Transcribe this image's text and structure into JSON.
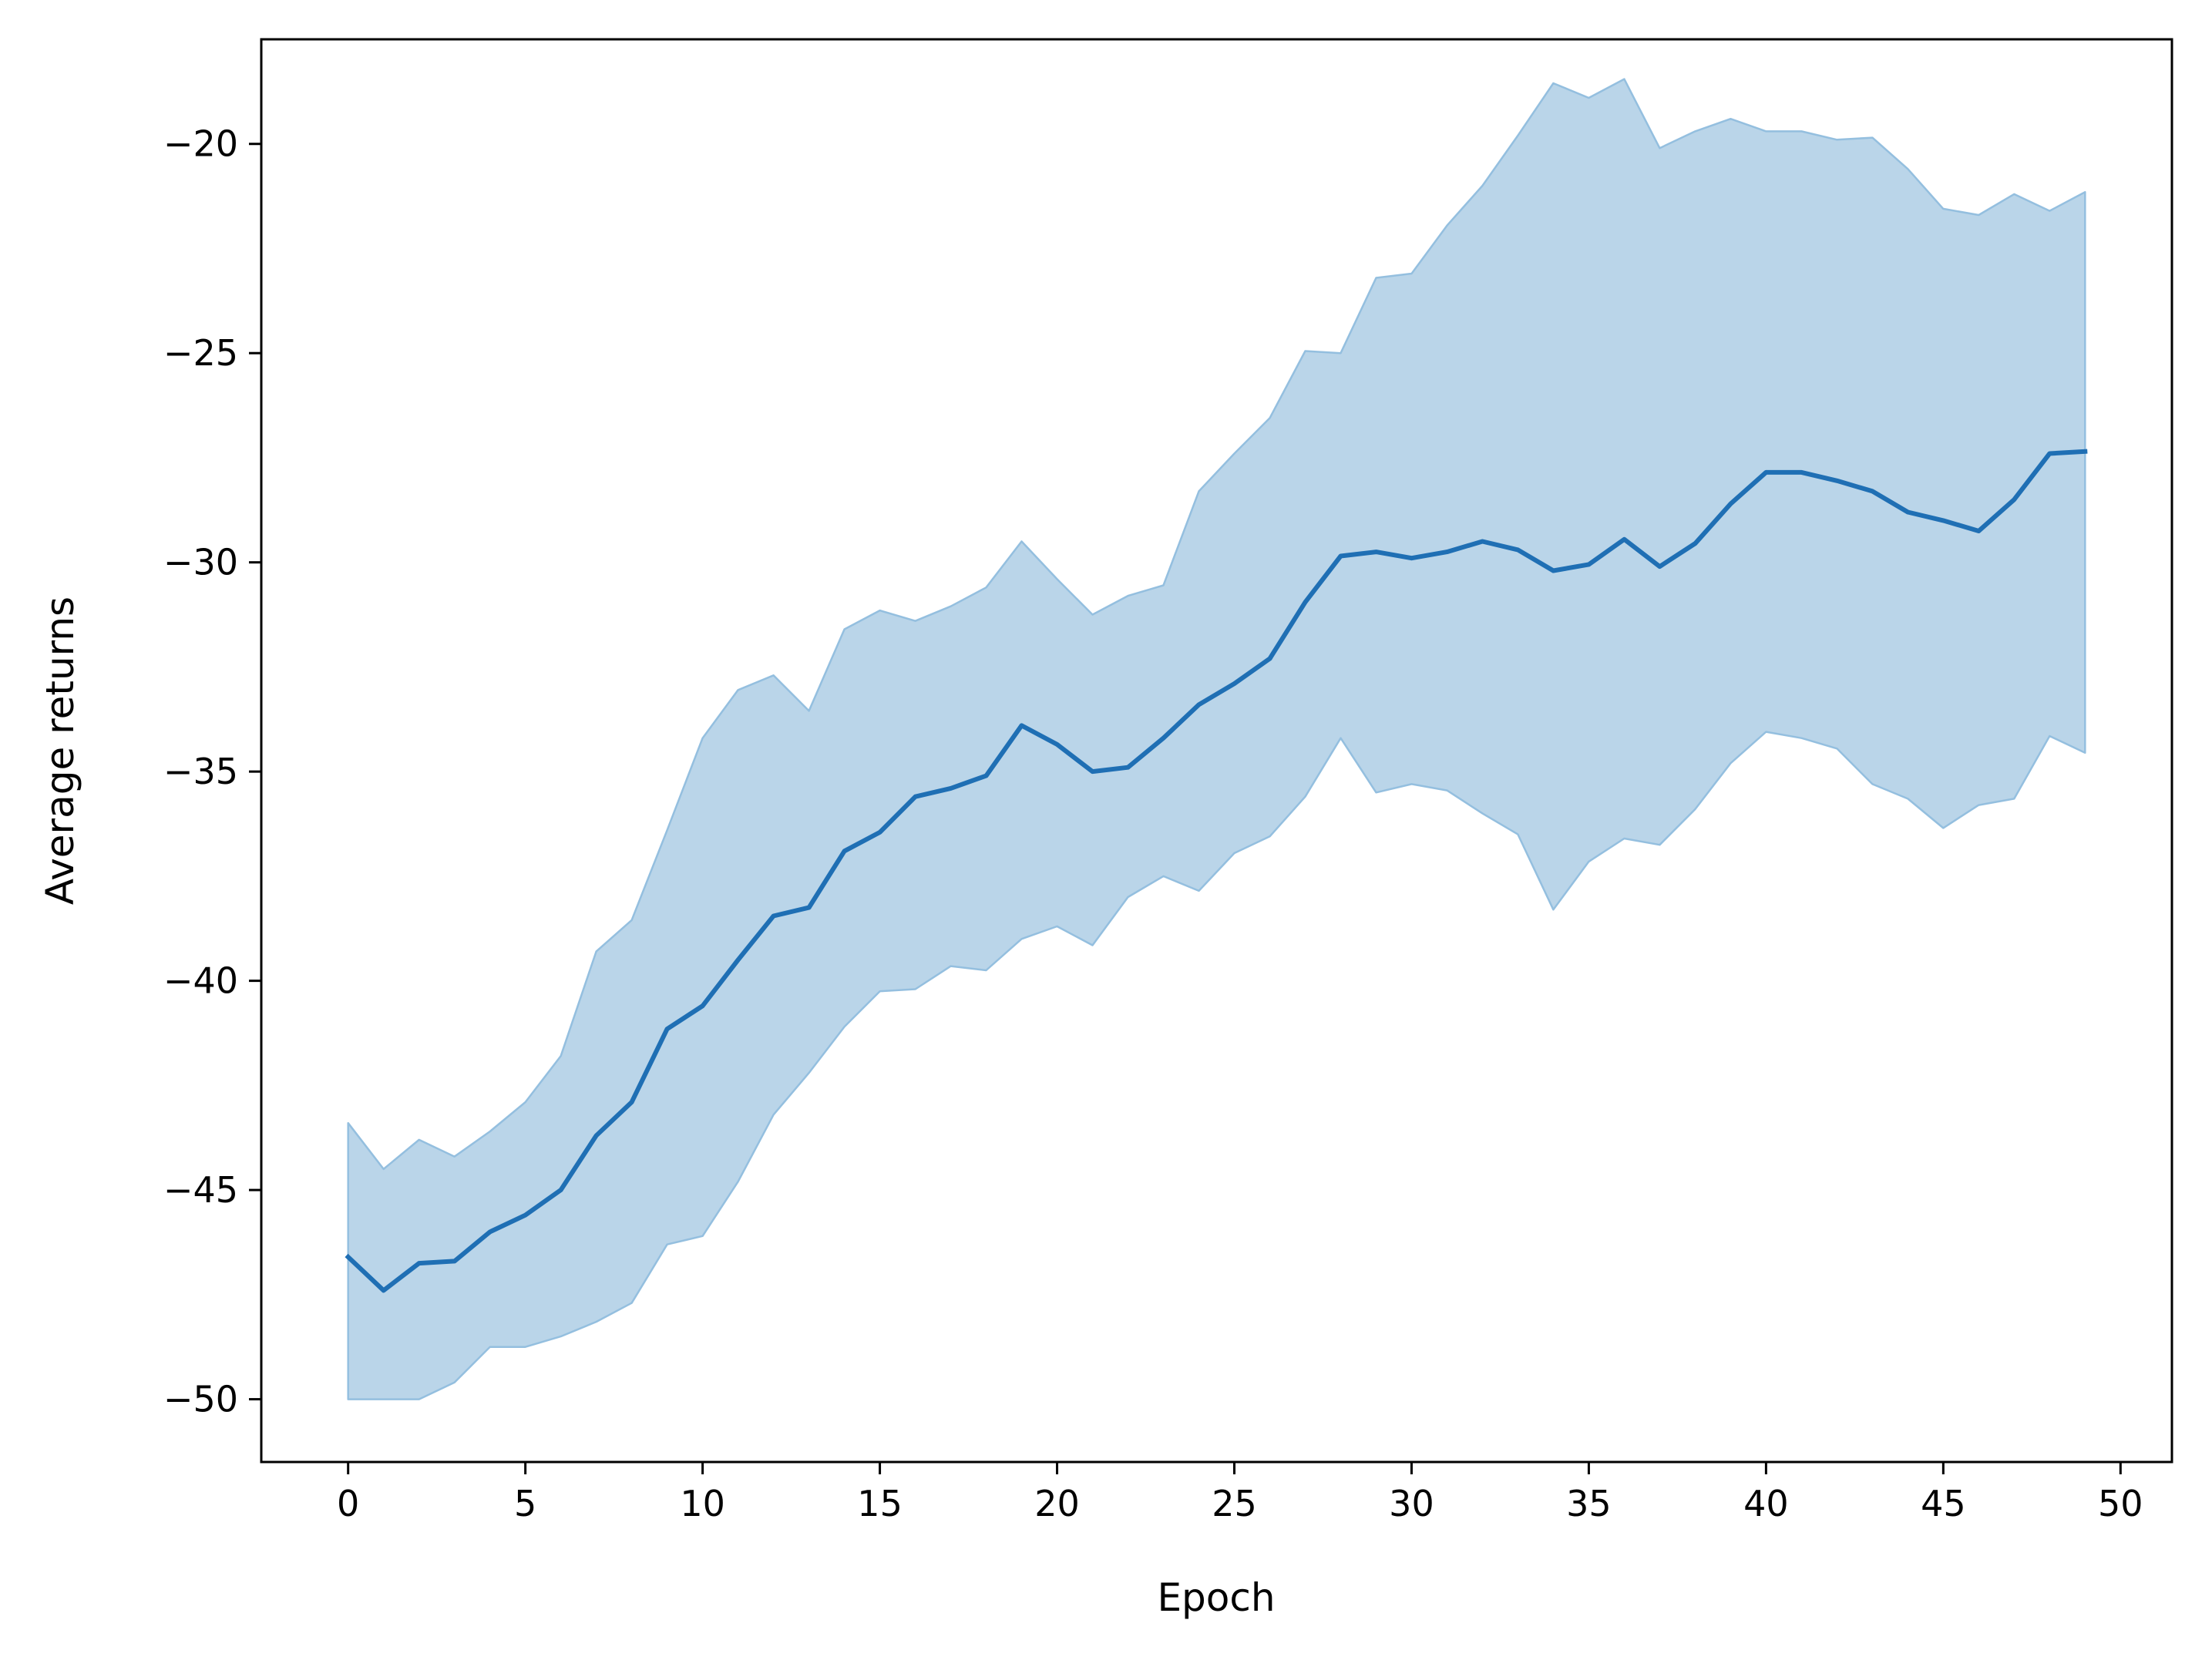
{
  "chart_data": {
    "type": "line",
    "title": "",
    "xlabel": "Epoch",
    "ylabel": "Average returns",
    "xlim": [
      -2.45,
      51.45
    ],
    "ylim": [
      -51.5,
      -17.5
    ],
    "xticks": [
      0,
      5,
      10,
      15,
      20,
      25,
      30,
      35,
      40,
      45,
      50
    ],
    "xtick_labels": [
      "0",
      "5",
      "10",
      "15",
      "20",
      "25",
      "30",
      "35",
      "40",
      "45",
      "50"
    ],
    "yticks": [
      -50,
      -45,
      -40,
      -35,
      -30,
      -25,
      -20
    ],
    "ytick_labels": [
      "−50",
      "−45",
      "−40",
      "−35",
      "−30",
      "−25",
      "−20"
    ],
    "grid": false,
    "legend": "none",
    "colors": {
      "line": "#1f6fb4",
      "band_fill": "#bad5e9",
      "band_edge": "#94bfdf",
      "axes": "#000000"
    },
    "x": [
      0,
      1,
      2,
      3,
      4,
      5,
      6,
      7,
      8,
      9,
      10,
      11,
      12,
      13,
      14,
      15,
      16,
      17,
      18,
      19,
      20,
      21,
      22,
      23,
      24,
      25,
      26,
      27,
      28,
      29,
      30,
      31,
      32,
      33,
      34,
      35,
      36,
      37,
      38,
      39,
      40,
      41,
      42,
      43,
      44,
      45,
      46,
      47,
      48,
      49
    ],
    "series": [
      {
        "values": [
          -46.6,
          -47.4,
          -46.75,
          -46.7,
          -46.0,
          -45.6,
          -45.0,
          -43.7,
          -42.9,
          -41.15,
          -40.6,
          -39.5,
          -38.45,
          -38.25,
          -36.9,
          -36.45,
          -35.6,
          -35.4,
          -35.1,
          -33.9,
          -34.35,
          -35.0,
          -34.9,
          -34.2,
          -33.4,
          -32.9,
          -32.3,
          -30.95,
          -29.85,
          -29.75,
          -29.9,
          -29.75,
          -29.5,
          -29.7,
          -30.2,
          -30.05,
          -29.45,
          -30.1,
          -29.55,
          -28.6,
          -27.85,
          -27.85,
          -28.05,
          -28.3,
          -28.8,
          -29.0,
          -29.25,
          -28.5,
          -27.4,
          -27.35
        ],
        "lower": [
          -50.0,
          -50.0,
          -50.0,
          -49.6,
          -48.75,
          -48.75,
          -48.5,
          -48.15,
          -47.7,
          -46.3,
          -46.1,
          -44.8,
          -43.2,
          -42.2,
          -41.1,
          -40.25,
          -40.2,
          -39.65,
          -39.75,
          -39.0,
          -38.7,
          -39.15,
          -38.0,
          -37.5,
          -37.85,
          -36.95,
          -36.55,
          -35.6,
          -34.2,
          -35.5,
          -35.3,
          -35.45,
          -36.0,
          -36.5,
          -38.3,
          -37.15,
          -36.6,
          -36.75,
          -35.9,
          -34.8,
          -34.05,
          -34.2,
          -34.45,
          -35.3,
          -35.65,
          -36.35,
          -35.8,
          -35.65,
          -34.15,
          -34.55
        ],
        "upper": [
          -43.4,
          -44.5,
          -43.8,
          -44.2,
          -43.6,
          -42.9,
          -41.8,
          -39.3,
          -38.55,
          -36.4,
          -34.2,
          -33.05,
          -32.7,
          -33.55,
          -31.6,
          -31.15,
          -31.4,
          -31.05,
          -30.6,
          -29.5,
          -30.4,
          -31.25,
          -30.8,
          -30.55,
          -28.3,
          -27.4,
          -26.55,
          -24.95,
          -25.0,
          -23.2,
          -23.1,
          -21.95,
          -21.0,
          -19.8,
          -18.55,
          -18.9,
          -18.45,
          -20.1,
          -19.7,
          -19.4,
          -19.7,
          -19.7,
          -19.9,
          -19.85,
          -20.6,
          -21.55,
          -21.7,
          -21.2,
          -21.6,
          -21.15
        ]
      }
    ]
  }
}
